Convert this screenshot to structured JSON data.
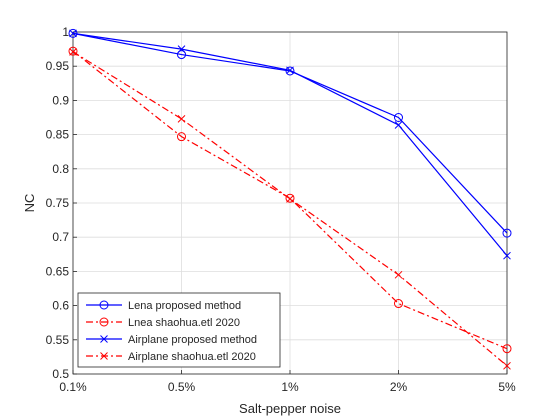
{
  "chart_data": {
    "type": "line",
    "xlabel": "Salt-pepper noise",
    "ylabel": "NC",
    "categories": [
      "0.1%",
      "0.5%",
      "1%",
      "2%",
      "5%"
    ],
    "ylim": [
      0.5,
      1.0
    ],
    "yticks": [
      "0.5",
      "0.55",
      "0.6",
      "0.65",
      "0.7",
      "0.75",
      "0.8",
      "0.85",
      "0.9",
      "0.95",
      "1"
    ],
    "grid": true,
    "legend_position": "bottom-left",
    "series": [
      {
        "name": "Lena proposed method",
        "values": [
          0.998,
          0.967,
          0.943,
          0.875,
          0.706
        ],
        "color": "#0000ff",
        "line": "solid",
        "marker": "circle"
      },
      {
        "name": "Lnea shaohua.etl 2020",
        "values": [
          0.972,
          0.847,
          0.757,
          0.603,
          0.537
        ],
        "color": "#ff0000",
        "line": "dashdot",
        "marker": "circle"
      },
      {
        "name": "Airplane proposed method",
        "values": [
          0.998,
          0.975,
          0.944,
          0.864,
          0.673
        ],
        "color": "#0000ff",
        "line": "solid",
        "marker": "x"
      },
      {
        "name": "Airplane shaohua.etl 2020",
        "values": [
          0.971,
          0.873,
          0.756,
          0.645,
          0.512
        ],
        "color": "#ff0000",
        "line": "dashdot",
        "marker": "x"
      }
    ]
  }
}
